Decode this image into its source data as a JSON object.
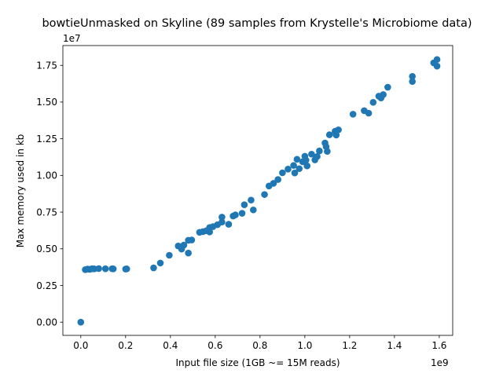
{
  "chart_data": {
    "type": "scatter",
    "title": "bowtieUnmasked on Skyline (89 samples from Krystelle's Microbiome data)",
    "xlabel": "Input file size (1GB ~= 15M reads)",
    "ylabel": "Max memory used in kb",
    "x_offset_label": "1e9",
    "y_offset_label": "1e7",
    "xlim": [
      -0.08,
      1.66
    ],
    "ylim": [
      -0.09,
      1.885
    ],
    "xticks": [
      0.0,
      0.2,
      0.4,
      0.6,
      0.8,
      1.0,
      1.2,
      1.4,
      1.6
    ],
    "xtick_labels": [
      "0.0",
      "0.2",
      "0.4",
      "0.6",
      "0.8",
      "1.0",
      "1.2",
      "1.4",
      "1.6"
    ],
    "yticks": [
      0.0,
      0.25,
      0.5,
      0.75,
      1.0,
      1.25,
      1.5,
      1.75
    ],
    "ytick_labels": [
      "0.00",
      "0.25",
      "0.50",
      "0.75",
      "1.00",
      "1.25",
      "1.50",
      "1.75"
    ],
    "grid": false,
    "marker_color": "#1f77b4",
    "series": [
      {
        "points": [
          [
            0.0,
            0.0
          ],
          [
            0.02,
            0.358
          ],
          [
            0.03,
            0.362
          ],
          [
            0.04,
            0.36
          ],
          [
            0.05,
            0.364
          ],
          [
            0.06,
            0.363
          ],
          [
            0.08,
            0.365
          ],
          [
            0.11,
            0.364
          ],
          [
            0.14,
            0.364
          ],
          [
            0.145,
            0.363
          ],
          [
            0.2,
            0.362
          ],
          [
            0.205,
            0.363
          ],
          [
            0.325,
            0.37
          ],
          [
            0.355,
            0.403
          ],
          [
            0.395,
            0.456
          ],
          [
            0.435,
            0.519
          ],
          [
            0.45,
            0.498
          ],
          [
            0.46,
            0.525
          ],
          [
            0.48,
            0.471
          ],
          [
            0.48,
            0.558
          ],
          [
            0.495,
            0.56
          ],
          [
            0.53,
            0.612
          ],
          [
            0.545,
            0.617
          ],
          [
            0.56,
            0.623
          ],
          [
            0.575,
            0.615
          ],
          [
            0.575,
            0.645
          ],
          [
            0.59,
            0.651
          ],
          [
            0.61,
            0.664
          ],
          [
            0.63,
            0.682
          ],
          [
            0.63,
            0.716
          ],
          [
            0.66,
            0.667
          ],
          [
            0.68,
            0.723
          ],
          [
            0.69,
            0.731
          ],
          [
            0.72,
            0.742
          ],
          [
            0.73,
            0.8
          ],
          [
            0.76,
            0.832
          ],
          [
            0.77,
            0.765
          ],
          [
            0.82,
            0.87
          ],
          [
            0.84,
            0.928
          ],
          [
            0.86,
            0.946
          ],
          [
            0.88,
            0.972
          ],
          [
            0.9,
            1.018
          ],
          [
            0.925,
            1.043
          ],
          [
            0.95,
            1.068
          ],
          [
            0.955,
            1.017
          ],
          [
            0.965,
            1.11
          ],
          [
            0.975,
            1.046
          ],
          [
            0.99,
            1.093
          ],
          [
            1.0,
            1.131
          ],
          [
            1.005,
            1.104
          ],
          [
            1.01,
            1.065
          ],
          [
            1.03,
            1.145
          ],
          [
            1.045,
            1.106
          ],
          [
            1.055,
            1.129
          ],
          [
            1.065,
            1.167
          ],
          [
            1.09,
            1.221
          ],
          [
            1.095,
            1.196
          ],
          [
            1.1,
            1.164
          ],
          [
            1.11,
            1.277
          ],
          [
            1.135,
            1.301
          ],
          [
            1.14,
            1.275
          ],
          [
            1.15,
            1.311
          ],
          [
            1.215,
            1.417
          ],
          [
            1.265,
            1.441
          ],
          [
            1.285,
            1.424
          ],
          [
            1.305,
            1.498
          ],
          [
            1.33,
            1.54
          ],
          [
            1.34,
            1.528
          ],
          [
            1.35,
            1.551
          ],
          [
            1.37,
            1.601
          ],
          [
            1.48,
            1.675
          ],
          [
            1.48,
            1.64
          ],
          [
            1.575,
            1.767
          ],
          [
            1.59,
            1.79
          ],
          [
            1.59,
            1.745
          ]
        ]
      }
    ]
  }
}
